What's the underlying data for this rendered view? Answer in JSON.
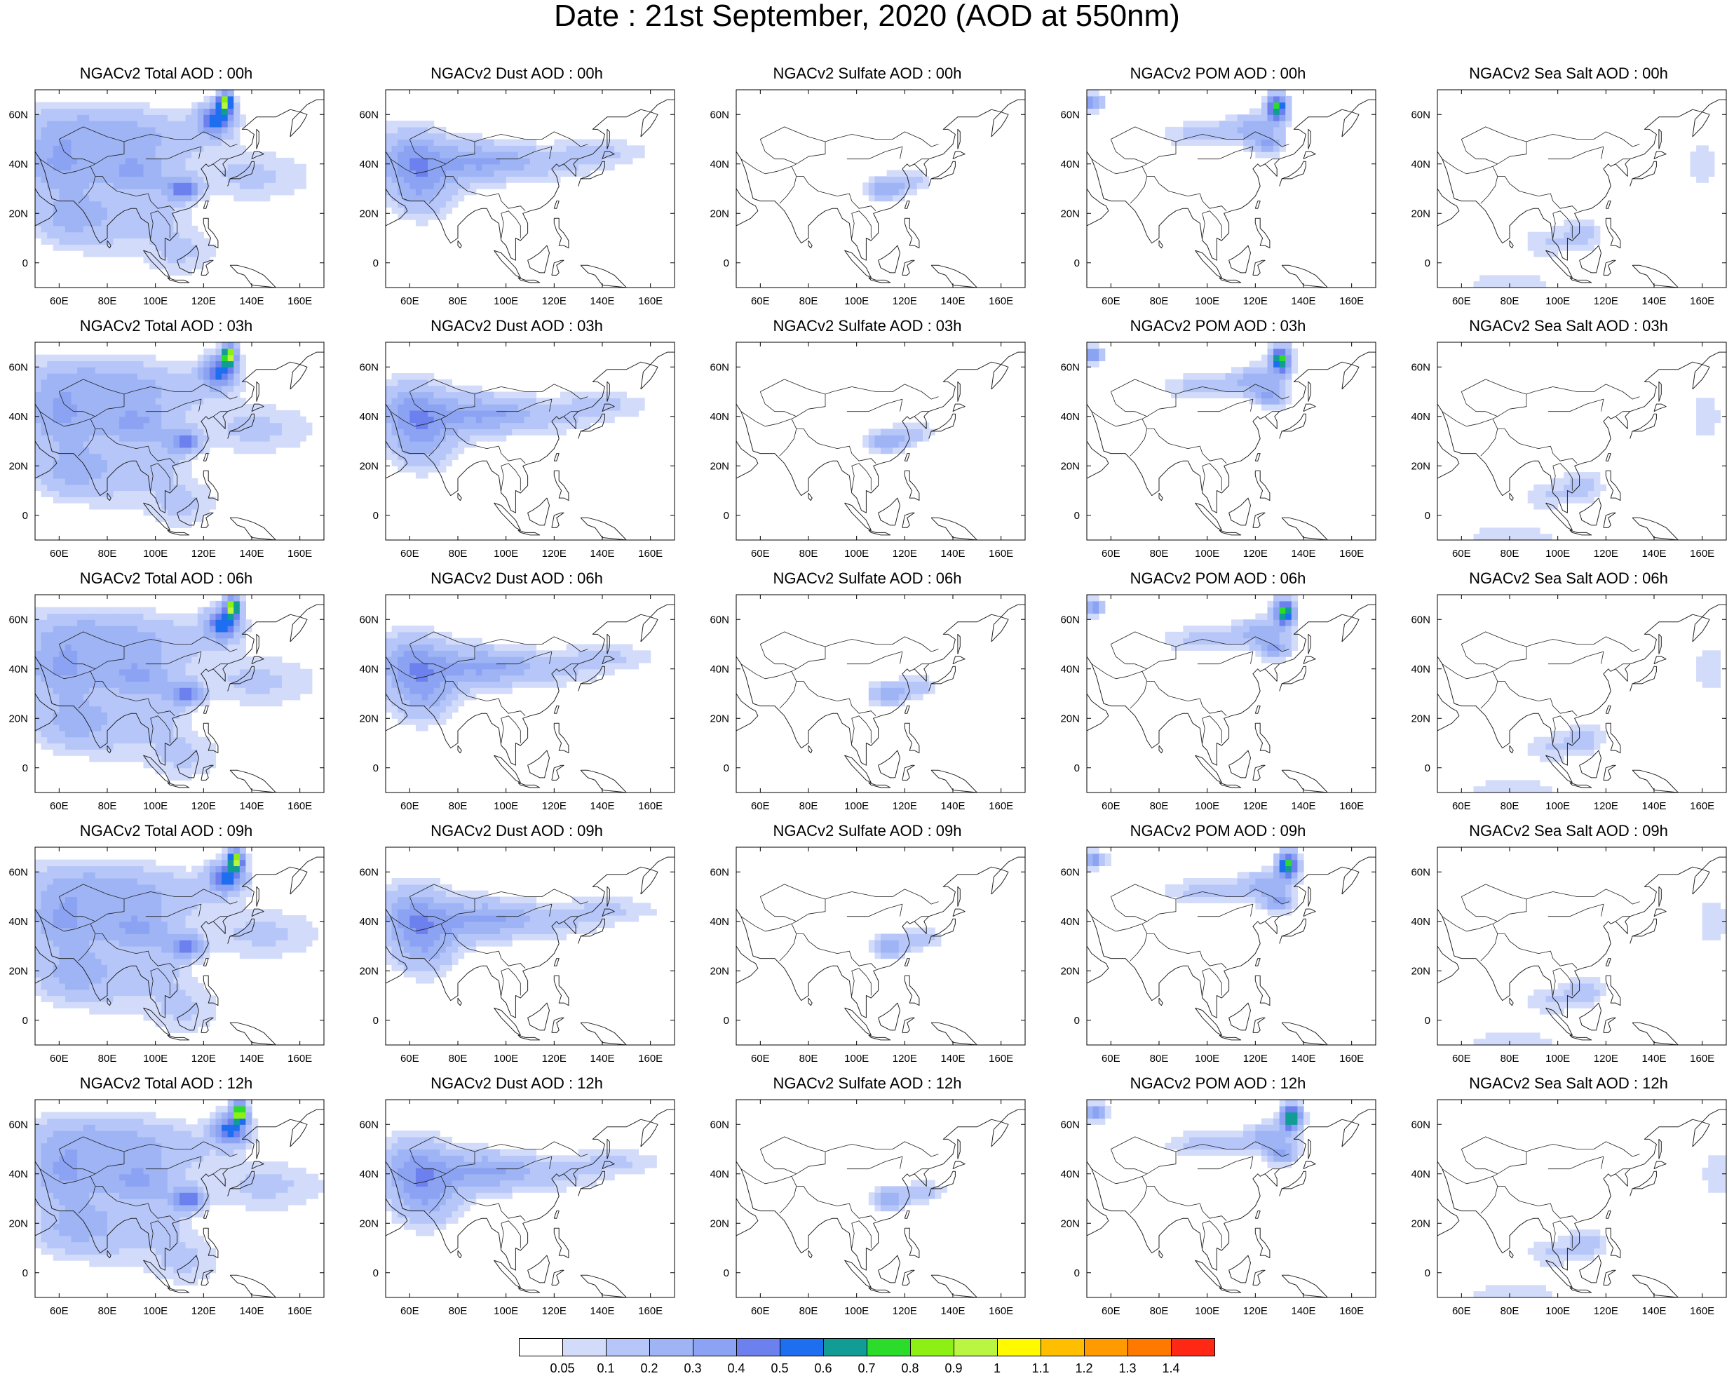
{
  "figure": {
    "title": "Date : 21st  September, 2020 (AOD at 550nm)"
  },
  "panels": [
    [
      "NGACv2 Total AOD : 00h",
      "NGACv2 Dust AOD : 00h",
      "NGACv2 Sulfate AOD : 00h",
      "NGACv2 POM AOD : 00h",
      "NGACv2 Sea Salt AOD : 00h"
    ],
    [
      "NGACv2 Total AOD : 03h",
      "NGACv2 Dust AOD : 03h",
      "NGACv2 Sulfate AOD : 03h",
      "NGACv2 POM AOD : 03h",
      "NGACv2 Sea Salt AOD : 03h"
    ],
    [
      "NGACv2 Total AOD : 06h",
      "NGACv2 Dust AOD : 06h",
      "NGACv2 Sulfate AOD : 06h",
      "NGACv2 POM AOD : 06h",
      "NGACv2 Sea Salt AOD : 06h"
    ],
    [
      "NGACv2 Total AOD : 09h",
      "NGACv2 Dust AOD : 09h",
      "NGACv2 Sulfate AOD : 09h",
      "NGACv2 POM AOD : 09h",
      "NGACv2 Sea Salt  AOD : 09h"
    ],
    [
      "NGACv2 Total AOD  : 12h",
      "NGACv2 Dust AOD : 12h",
      "NGACv2 Sulfate AOD : 12h",
      "NGACv2 POM  AOD : 12h",
      "NGACv2 Sea Salt  AOD : 12h"
    ]
  ],
  "axes": {
    "lat_ticks": [
      "60N",
      "40N",
      "20N",
      "0"
    ],
    "lon_ticks": [
      "60E",
      "80E",
      "100E",
      "120E",
      "140E",
      "160E"
    ]
  },
  "colorbar": {
    "levels": [
      "0.05",
      "0.1",
      "0.2",
      "0.3",
      "0.4",
      "0.5",
      "0.6",
      "0.7",
      "0.8",
      "0.9",
      "1",
      "1.1",
      "1.2",
      "1.3",
      "1.4"
    ],
    "colors": [
      "#ffffff",
      "#d2dcfa",
      "#b6c6f8",
      "#9eb4f5",
      "#8ba3f2",
      "#6c80ee",
      "#1e6ef0",
      "#119c96",
      "#2bdc2b",
      "#8cf014",
      "#b9f541",
      "#fffa00",
      "#ffbe00",
      "#ff9b00",
      "#ff7800",
      "#ff2814"
    ]
  }
}
